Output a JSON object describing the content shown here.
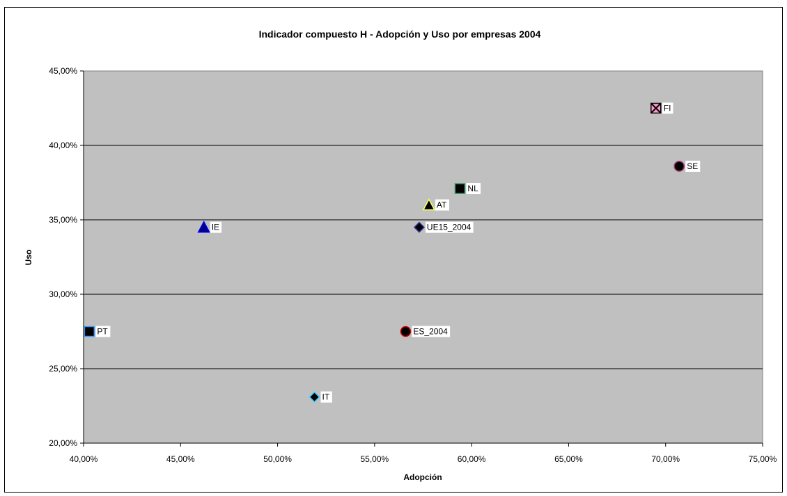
{
  "chart_data": {
    "type": "scatter",
    "title": "Indicador compuesto H - Adopción y Uso por empresas 2004",
    "xlabel": "Adopción",
    "ylabel": "Uso",
    "xlim": [
      0.4,
      0.75
    ],
    "ylim": [
      0.2,
      0.45
    ],
    "x_ticks": [
      "40,00%",
      "45,00%",
      "50,00%",
      "55,00%",
      "60,00%",
      "65,00%",
      "70,00%",
      "75,00%"
    ],
    "y_ticks": [
      "20,00%",
      "25,00%",
      "30,00%",
      "35,00%",
      "40,00%",
      "45,00%"
    ],
    "grid": "horizontal",
    "plot_background": "#c0c0c0",
    "points": [
      {
        "label": "FI",
        "x": 0.695,
        "y": 0.425,
        "marker": "x-square",
        "fill": "#ff99cc",
        "stroke": "#000000"
      },
      {
        "label": "SE",
        "x": 0.707,
        "y": 0.386,
        "marker": "circle",
        "fill": "#000000",
        "stroke": "#993366"
      },
      {
        "label": "NL",
        "x": 0.594,
        "y": 0.371,
        "marker": "square",
        "fill": "#000000",
        "stroke": "#339966"
      },
      {
        "label": "AT",
        "x": 0.578,
        "y": 0.36,
        "marker": "triangle",
        "fill": "#000000",
        "stroke": "#ffff66"
      },
      {
        "label": "UE15_2004",
        "x": 0.573,
        "y": 0.345,
        "marker": "diamond",
        "fill": "#000000",
        "stroke": "#333399"
      },
      {
        "label": "IE",
        "x": 0.462,
        "y": 0.345,
        "marker": "triangle",
        "fill": "#000080",
        "stroke": "#0000ff"
      },
      {
        "label": "PT",
        "x": 0.403,
        "y": 0.275,
        "marker": "square",
        "fill": "#000000",
        "stroke": "#3399ff"
      },
      {
        "label": "ES_2004",
        "x": 0.566,
        "y": 0.275,
        "marker": "circle",
        "fill": "#000000",
        "stroke": "#cc0000"
      },
      {
        "label": "IT",
        "x": 0.519,
        "y": 0.231,
        "marker": "diamond",
        "fill": "#000000",
        "stroke": "#33ccff"
      }
    ]
  }
}
